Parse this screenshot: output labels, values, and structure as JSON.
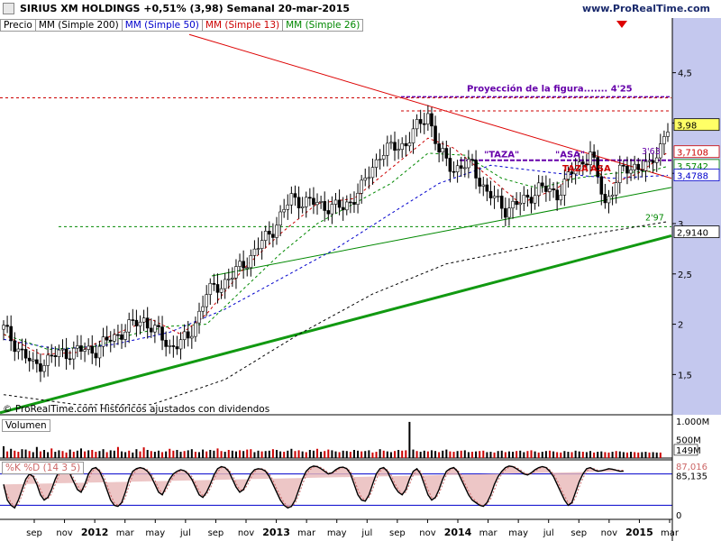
{
  "header": {
    "title": "SIRIUS XM HOLDINGS   +0,51% (3,98)   Semanal   20-mar-2015",
    "brand": "www.ProRealTime.com"
  },
  "legend": [
    {
      "label": "Precio",
      "color": "#000000"
    },
    {
      "label": "MM (Simple 200)",
      "color": "#000000"
    },
    {
      "label": "MM (Simple 50)",
      "color": "#0000cc"
    },
    {
      "label": "MM (Simple 13)",
      "color": "#cc0000"
    },
    {
      "label": "MM (Simple 26)",
      "color": "#008800"
    }
  ],
  "footer_note": "© ProRealTime.com  Históricos ajustados con dividendos",
  "chart_data": [
    {
      "type": "candlestick",
      "ylim": [
        1.1,
        4.9
      ],
      "y_ticks": [
        "4,5",
        "4",
        "3,5",
        "3",
        "2,5",
        "2",
        "1,5"
      ],
      "x_tick_labels": [
        "sep",
        "nov",
        "2012",
        "mar",
        "may",
        "jul",
        "sep",
        "nov",
        "2013",
        "mar",
        "may",
        "jul",
        "sep",
        "nov",
        "2014",
        "mar",
        "may",
        "jul",
        "sep",
        "nov",
        "2015",
        "mar"
      ],
      "price_path": [
        [
          0,
          1.95
        ],
        [
          8,
          1.58
        ],
        [
          16,
          1.72
        ],
        [
          25,
          1.75
        ],
        [
          33,
          1.95
        ],
        [
          38,
          2.05
        ],
        [
          45,
          1.78
        ],
        [
          50,
          1.85
        ],
        [
          55,
          2.3
        ],
        [
          62,
          2.48
        ],
        [
          68,
          2.72
        ],
        [
          73,
          2.95
        ],
        [
          78,
          3.25
        ],
        [
          84,
          3.2
        ],
        [
          92,
          3.15
        ],
        [
          97,
          3.35
        ],
        [
          102,
          3.7
        ],
        [
          109,
          3.8
        ],
        [
          115,
          4.1
        ],
        [
          118,
          3.7
        ],
        [
          122,
          3.55
        ],
        [
          127,
          3.58
        ],
        [
          131,
          3.3
        ],
        [
          136,
          3.15
        ],
        [
          140,
          3.2
        ],
        [
          145,
          3.35
        ],
        [
          150,
          3.3
        ],
        [
          155,
          3.55
        ],
        [
          159,
          3.7
        ],
        [
          163,
          3.2
        ],
        [
          167,
          3.5
        ],
        [
          171,
          3.58
        ],
        [
          175,
          3.55
        ],
        [
          180,
          3.95
        ]
      ],
      "ma200_path": [
        [
          0,
          1.3
        ],
        [
          20,
          1.2
        ],
        [
          40,
          1.2
        ],
        [
          60,
          1.45
        ],
        [
          80,
          1.9
        ],
        [
          100,
          2.3
        ],
        [
          120,
          2.6
        ],
        [
          140,
          2.75
        ],
        [
          160,
          2.9
        ],
        [
          180,
          3.02
        ]
      ],
      "ma50_path": [
        [
          0,
          1.85
        ],
        [
          15,
          1.75
        ],
        [
          30,
          1.8
        ],
        [
          45,
          1.92
        ],
        [
          60,
          2.15
        ],
        [
          75,
          2.45
        ],
        [
          90,
          2.75
        ],
        [
          105,
          3.1
        ],
        [
          118,
          3.4
        ],
        [
          132,
          3.58
        ],
        [
          150,
          3.5
        ],
        [
          165,
          3.45
        ],
        [
          180,
          3.48
        ]
      ],
      "ma13_path": [
        [
          0,
          1.9
        ],
        [
          10,
          1.7
        ],
        [
          20,
          1.72
        ],
        [
          30,
          1.9
        ],
        [
          40,
          2.05
        ],
        [
          48,
          1.9
        ],
        [
          55,
          2.1
        ],
        [
          65,
          2.55
        ],
        [
          75,
          2.9
        ],
        [
          85,
          3.2
        ],
        [
          95,
          3.25
        ],
        [
          105,
          3.55
        ],
        [
          115,
          3.85
        ],
        [
          122,
          3.75
        ],
        [
          132,
          3.45
        ],
        [
          140,
          3.2
        ],
        [
          150,
          3.35
        ],
        [
          158,
          3.6
        ],
        [
          165,
          3.4
        ],
        [
          172,
          3.5
        ],
        [
          180,
          3.71
        ]
      ],
      "ma26_path": [
        [
          0,
          1.9
        ],
        [
          12,
          1.75
        ],
        [
          25,
          1.78
        ],
        [
          35,
          1.9
        ],
        [
          45,
          1.98
        ],
        [
          55,
          2.0
        ],
        [
          65,
          2.35
        ],
        [
          75,
          2.7
        ],
        [
          85,
          3.0
        ],
        [
          95,
          3.2
        ],
        [
          105,
          3.4
        ],
        [
          115,
          3.7
        ],
        [
          125,
          3.68
        ],
        [
          135,
          3.45
        ],
        [
          145,
          3.35
        ],
        [
          155,
          3.45
        ],
        [
          165,
          3.5
        ],
        [
          175,
          3.52
        ],
        [
          180,
          3.57
        ]
      ],
      "annotations": {
        "projection": "Proyección de la figura....... 4'25",
        "taza1": "\"TAZA\"",
        "asa1": "\"ASA\"",
        "taza2": "TAZA",
        "asa2": "ASA",
        "label_363": "3'63",
        "label_297": "2'97"
      },
      "price_labels": [
        {
          "text": "3,98",
          "value": 3.98,
          "color": "#000000",
          "bg": "#ffff66"
        },
        {
          "text": "3,7108",
          "value": 3.7108,
          "color": "#cc0000",
          "bg": "#ffffff"
        },
        {
          "text": "3,5742",
          "value": 3.5742,
          "color": "#008800",
          "bg": "#ffffff"
        },
        {
          "text": "3,4788",
          "value": 3.4788,
          "color": "#0000cc",
          "bg": "#ffffff"
        },
        {
          "text": "2,9140",
          "value": 2.914,
          "color": "#000000",
          "bg": "#ffffff"
        }
      ]
    },
    {
      "type": "bar",
      "title": "Volumen",
      "y_ticks": [
        "1.000M",
        "500M"
      ],
      "ylim": [
        0,
        1100
      ],
      "last_label": "149M",
      "values": [
        320,
        180,
        250,
        200,
        170,
        240,
        230,
        190,
        160,
        300,
        180,
        220,
        160,
        260,
        170,
        210,
        190,
        150,
        230,
        170,
        200,
        260,
        180,
        210,
        220,
        170,
        190,
        240,
        160,
        210,
        200,
        300,
        180,
        160,
        200,
        150,
        240,
        180,
        290,
        220,
        190,
        170,
        200,
        160,
        180,
        250,
        200,
        220,
        170,
        190,
        210,
        240,
        170,
        160,
        230,
        180,
        220,
        200,
        260,
        190,
        170,
        220,
        200,
        180,
        210,
        190,
        230,
        240,
        160,
        200,
        180,
        190,
        200,
        240,
        220,
        180,
        170,
        200,
        250,
        190,
        210,
        180,
        160,
        220,
        200,
        250,
        170,
        190,
        230,
        210,
        180,
        160,
        200,
        190,
        170,
        220,
        200,
        180,
        190,
        210,
        150,
        170,
        240,
        200,
        180,
        160,
        190,
        220,
        200,
        210,
        980,
        230,
        190,
        170,
        200,
        180,
        210,
        190,
        160,
        200,
        230,
        180,
        170,
        190,
        200,
        210,
        160,
        170,
        180,
        190,
        200,
        160,
        170,
        150,
        190,
        200,
        160,
        180,
        170,
        190,
        200,
        160,
        190,
        210,
        180,
        150,
        170,
        190,
        200,
        180,
        160,
        150,
        190,
        170,
        160,
        200,
        180,
        170,
        160,
        190,
        150,
        170,
        180,
        160,
        150,
        170,
        190,
        180,
        160,
        150,
        170,
        160,
        150,
        160,
        170,
        150,
        160,
        150,
        149
      ],
      "down_flags_mod": 3
    },
    {
      "type": "line",
      "title": "%K  %D (14 3 5)",
      "y_ticks": [
        "0"
      ],
      "ylim": [
        0,
        100
      ],
      "labels": {
        "k": "85,135",
        "d": "87,016"
      },
      "k_values": [
        60,
        30,
        20,
        15,
        30,
        50,
        70,
        80,
        75,
        60,
        40,
        30,
        35,
        50,
        70,
        85,
        90,
        88,
        80,
        65,
        50,
        45,
        60,
        80,
        90,
        92,
        85,
        70,
        50,
        30,
        20,
        18,
        25,
        45,
        70,
        85,
        90,
        92,
        90,
        85,
        75,
        60,
        45,
        40,
        55,
        70,
        80,
        85,
        88,
        86,
        80,
        70,
        55,
        40,
        35,
        45,
        60,
        78,
        90,
        94,
        92,
        85,
        70,
        55,
        45,
        50,
        65,
        80,
        88,
        90,
        89,
        85,
        75,
        60,
        45,
        30,
        20,
        15,
        18,
        30,
        50,
        70,
        85,
        92,
        95,
        94,
        90,
        85,
        80,
        82,
        88,
        92,
        93,
        90,
        80,
        60,
        40,
        30,
        28,
        40,
        60,
        80,
        90,
        92,
        85,
        70,
        55,
        45,
        40,
        50,
        70,
        85,
        90,
        80,
        60,
        40,
        30,
        35,
        50,
        70,
        85,
        90,
        92,
        85,
        70,
        55,
        40,
        30,
        25,
        20,
        18,
        25,
        40,
        60,
        75,
        85,
        92,
        95,
        94,
        90,
        85,
        80,
        78,
        82,
        88,
        92,
        94,
        92,
        85,
        75,
        60,
        45,
        30,
        20,
        25,
        45,
        65,
        80,
        90,
        92,
        88,
        85,
        86,
        88,
        90,
        89,
        87,
        85,
        85.135
      ],
      "d_values": [
        55,
        40,
        25,
        18,
        22,
        40,
        60,
        75,
        78,
        68,
        50,
        35,
        32,
        42,
        60,
        78,
        88,
        90,
        84,
        72,
        58,
        48,
        52,
        70,
        85,
        90,
        88,
        78,
        60,
        40,
        25,
        20,
        22,
        35,
        58,
        78,
        88,
        91,
        91,
        88,
        80,
        68,
        52,
        42,
        48,
        62,
        75,
        82,
        86,
        87,
        83,
        75,
        62,
        48,
        38,
        40,
        52,
        70,
        84,
        92,
        93,
        88,
        78,
        62,
        50,
        48,
        58,
        72,
        84,
        89,
        90,
        87,
        80,
        68,
        52,
        38,
        25,
        18,
        17,
        24,
        40,
        60,
        78,
        88,
        93,
        95,
        92,
        88,
        82,
        81,
        85,
        90,
        92,
        91,
        85,
        70,
        50,
        35,
        30,
        35,
        50,
        70,
        85,
        90,
        88,
        78,
        62,
        50,
        42,
        45,
        60,
        78,
        88,
        85,
        70,
        50,
        35,
        33,
        42,
        60,
        78,
        88,
        91,
        88,
        78,
        62,
        48,
        35,
        28,
        22,
        19,
        22,
        32,
        50,
        68,
        80,
        88,
        93,
        95,
        92,
        88,
        83,
        80,
        80,
        85,
        90,
        93,
        93,
        88,
        80,
        68,
        52,
        38,
        25,
        22,
        35,
        55,
        72,
        85,
        91,
        90,
        87,
        86,
        87,
        89,
        89,
        88,
        87,
        87.016
      ]
    }
  ]
}
